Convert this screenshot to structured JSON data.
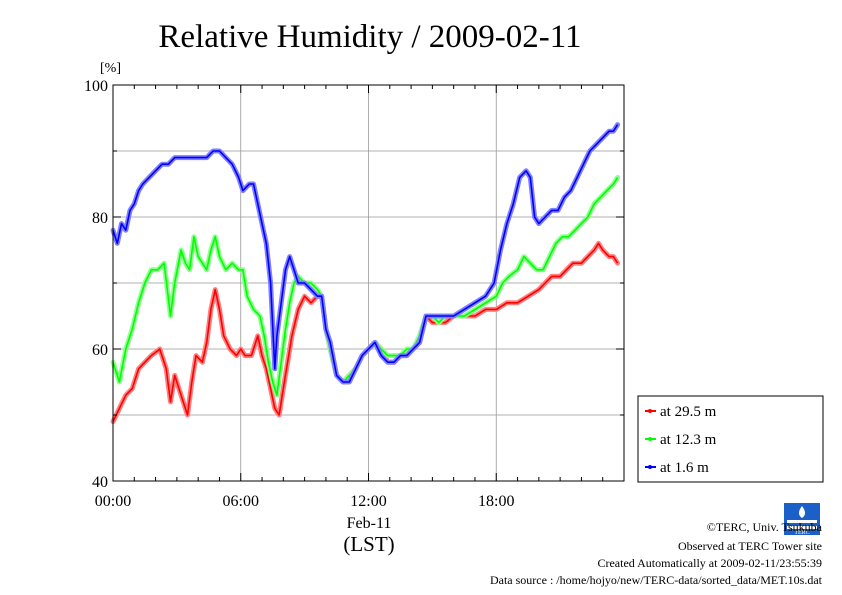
{
  "chart_data": {
    "type": "line",
    "title": "Relative Humidity / 2009-02-11",
    "ylabel": "[%]",
    "ylim": [
      40,
      100
    ],
    "yticks": [
      40,
      60,
      80,
      100
    ],
    "xlim": [
      0,
      24
    ],
    "xticks": [
      {
        "x": 0,
        "label": "00:00"
      },
      {
        "x": 6,
        "label": "06:00"
      },
      {
        "x": 12,
        "label": "12:00"
      },
      {
        "x": 18,
        "label": "18:00"
      }
    ],
    "date_label": "Feb-11",
    "xlabel": "(LST)",
    "grid": true,
    "legend_position": "right",
    "series": [
      {
        "name": "at 29.5 m",
        "color": "#ff0000",
        "points": [
          [
            0,
            49
          ],
          [
            0.3,
            51
          ],
          [
            0.6,
            53
          ],
          [
            0.9,
            54
          ],
          [
            1.2,
            57
          ],
          [
            1.5,
            58
          ],
          [
            1.8,
            59
          ],
          [
            2.2,
            60
          ],
          [
            2.5,
            57
          ],
          [
            2.7,
            52
          ],
          [
            2.9,
            56
          ],
          [
            3.2,
            53
          ],
          [
            3.5,
            50
          ],
          [
            3.7,
            55
          ],
          [
            3.9,
            59
          ],
          [
            4.2,
            58
          ],
          [
            4.4,
            61
          ],
          [
            4.6,
            66
          ],
          [
            4.8,
            69
          ],
          [
            5.0,
            66
          ],
          [
            5.2,
            62
          ],
          [
            5.5,
            60
          ],
          [
            5.8,
            59
          ],
          [
            6.0,
            60
          ],
          [
            6.2,
            59
          ],
          [
            6.5,
            59
          ],
          [
            6.8,
            62
          ],
          [
            7.0,
            59
          ],
          [
            7.2,
            57
          ],
          [
            7.4,
            54
          ],
          [
            7.6,
            51
          ],
          [
            7.8,
            50
          ],
          [
            8.0,
            54
          ],
          [
            8.2,
            58
          ],
          [
            8.4,
            62
          ],
          [
            8.7,
            66
          ],
          [
            9.0,
            68
          ],
          [
            9.3,
            67
          ],
          [
            9.6,
            68
          ],
          [
            9.8,
            68
          ],
          [
            10.0,
            63
          ],
          [
            10.2,
            60
          ],
          [
            10.5,
            56
          ],
          [
            10.8,
            55
          ],
          [
            11.1,
            56
          ],
          [
            11.4,
            57
          ],
          [
            11.7,
            59
          ],
          [
            12.0,
            60
          ],
          [
            12.3,
            61
          ],
          [
            12.6,
            60
          ],
          [
            12.9,
            58
          ],
          [
            13.2,
            58
          ],
          [
            13.5,
            59
          ],
          [
            13.8,
            59
          ],
          [
            14.1,
            60
          ],
          [
            14.4,
            61
          ],
          [
            14.7,
            65
          ],
          [
            15.0,
            64
          ],
          [
            15.3,
            64
          ],
          [
            15.6,
            64
          ],
          [
            16.0,
            65
          ],
          [
            16.5,
            65
          ],
          [
            17.0,
            65
          ],
          [
            17.5,
            66
          ],
          [
            18.0,
            66
          ],
          [
            18.5,
            67
          ],
          [
            19.0,
            67
          ],
          [
            19.5,
            68
          ],
          [
            20.0,
            69
          ],
          [
            20.3,
            70
          ],
          [
            20.6,
            71
          ],
          [
            21.0,
            71
          ],
          [
            21.3,
            72
          ],
          [
            21.6,
            73
          ],
          [
            22.0,
            73
          ],
          [
            22.3,
            74
          ],
          [
            22.6,
            75
          ],
          [
            22.8,
            76
          ],
          [
            23.0,
            75
          ],
          [
            23.3,
            74
          ],
          [
            23.5,
            74
          ],
          [
            23.7,
            73
          ]
        ]
      },
      {
        "name": "at 12.3 m",
        "color": "#00ff00",
        "points": [
          [
            0,
            58
          ],
          [
            0.3,
            55
          ],
          [
            0.6,
            60
          ],
          [
            0.9,
            63
          ],
          [
            1.2,
            67
          ],
          [
            1.5,
            70
          ],
          [
            1.8,
            72
          ],
          [
            2.1,
            72
          ],
          [
            2.4,
            73
          ],
          [
            2.7,
            65
          ],
          [
            2.9,
            70
          ],
          [
            3.2,
            75
          ],
          [
            3.4,
            73
          ],
          [
            3.6,
            72
          ],
          [
            3.8,
            77
          ],
          [
            4.0,
            74
          ],
          [
            4.2,
            73
          ],
          [
            4.4,
            72
          ],
          [
            4.6,
            75
          ],
          [
            4.8,
            77
          ],
          [
            5.0,
            74
          ],
          [
            5.3,
            72
          ],
          [
            5.6,
            73
          ],
          [
            5.9,
            72
          ],
          [
            6.1,
            72
          ],
          [
            6.3,
            68
          ],
          [
            6.6,
            66
          ],
          [
            6.9,
            65
          ],
          [
            7.1,
            62
          ],
          [
            7.3,
            58
          ],
          [
            7.5,
            55
          ],
          [
            7.7,
            53
          ],
          [
            7.9,
            58
          ],
          [
            8.1,
            63
          ],
          [
            8.3,
            67
          ],
          [
            8.5,
            70
          ],
          [
            8.7,
            71
          ],
          [
            9.0,
            70
          ],
          [
            9.3,
            70
          ],
          [
            9.6,
            69
          ],
          [
            9.8,
            68
          ],
          [
            10.0,
            63
          ],
          [
            10.2,
            60
          ],
          [
            10.5,
            56
          ],
          [
            10.8,
            55
          ],
          [
            11.1,
            56
          ],
          [
            11.4,
            57
          ],
          [
            11.7,
            59
          ],
          [
            12.0,
            60
          ],
          [
            12.3,
            61
          ],
          [
            12.6,
            60
          ],
          [
            12.9,
            59
          ],
          [
            13.2,
            59
          ],
          [
            13.5,
            59
          ],
          [
            13.8,
            60
          ],
          [
            14.1,
            60
          ],
          [
            14.4,
            62
          ],
          [
            14.7,
            65
          ],
          [
            15.0,
            65
          ],
          [
            15.3,
            64
          ],
          [
            15.6,
            65
          ],
          [
            16.0,
            65
          ],
          [
            16.5,
            65
          ],
          [
            17.0,
            66
          ],
          [
            17.5,
            67
          ],
          [
            18.0,
            68
          ],
          [
            18.3,
            70
          ],
          [
            18.6,
            71
          ],
          [
            19.0,
            72
          ],
          [
            19.3,
            74
          ],
          [
            19.6,
            73
          ],
          [
            19.9,
            72
          ],
          [
            20.2,
            72
          ],
          [
            20.5,
            74
          ],
          [
            20.8,
            76
          ],
          [
            21.1,
            77
          ],
          [
            21.4,
            77
          ],
          [
            21.7,
            78
          ],
          [
            22.0,
            79
          ],
          [
            22.3,
            80
          ],
          [
            22.6,
            82
          ],
          [
            22.9,
            83
          ],
          [
            23.2,
            84
          ],
          [
            23.5,
            85
          ],
          [
            23.7,
            86
          ]
        ]
      },
      {
        "name": "at 1.6 m",
        "color": "#0000ff",
        "points": [
          [
            0,
            78
          ],
          [
            0.2,
            76
          ],
          [
            0.4,
            79
          ],
          [
            0.6,
            78
          ],
          [
            0.8,
            81
          ],
          [
            1.0,
            82
          ],
          [
            1.2,
            84
          ],
          [
            1.4,
            85
          ],
          [
            1.7,
            86
          ],
          [
            2.0,
            87
          ],
          [
            2.3,
            88
          ],
          [
            2.6,
            88
          ],
          [
            2.9,
            89
          ],
          [
            3.2,
            89
          ],
          [
            3.5,
            89
          ],
          [
            3.8,
            89
          ],
          [
            4.1,
            89
          ],
          [
            4.4,
            89
          ],
          [
            4.7,
            90
          ],
          [
            5.0,
            90
          ],
          [
            5.3,
            89
          ],
          [
            5.6,
            88
          ],
          [
            5.9,
            86
          ],
          [
            6.1,
            84
          ],
          [
            6.4,
            85
          ],
          [
            6.6,
            85
          ],
          [
            6.8,
            82
          ],
          [
            7.0,
            79
          ],
          [
            7.2,
            76
          ],
          [
            7.4,
            70
          ],
          [
            7.6,
            57
          ],
          [
            7.7,
            62
          ],
          [
            7.9,
            67
          ],
          [
            8.1,
            72
          ],
          [
            8.3,
            74
          ],
          [
            8.5,
            72
          ],
          [
            8.7,
            70
          ],
          [
            9.0,
            70
          ],
          [
            9.3,
            69
          ],
          [
            9.6,
            68
          ],
          [
            9.8,
            68
          ],
          [
            10.0,
            63
          ],
          [
            10.2,
            61
          ],
          [
            10.5,
            56
          ],
          [
            10.8,
            55
          ],
          [
            11.1,
            55
          ],
          [
            11.4,
            57
          ],
          [
            11.7,
            59
          ],
          [
            12.0,
            60
          ],
          [
            12.3,
            61
          ],
          [
            12.6,
            59
          ],
          [
            12.9,
            58
          ],
          [
            13.2,
            58
          ],
          [
            13.5,
            59
          ],
          [
            13.8,
            59
          ],
          [
            14.1,
            60
          ],
          [
            14.4,
            61
          ],
          [
            14.7,
            65
          ],
          [
            15.0,
            65
          ],
          [
            15.3,
            65
          ],
          [
            15.6,
            65
          ],
          [
            16.0,
            65
          ],
          [
            16.5,
            66
          ],
          [
            17.0,
            67
          ],
          [
            17.5,
            68
          ],
          [
            17.9,
            70
          ],
          [
            18.2,
            75
          ],
          [
            18.5,
            79
          ],
          [
            18.8,
            82
          ],
          [
            19.1,
            86
          ],
          [
            19.4,
            87
          ],
          [
            19.6,
            86
          ],
          [
            19.8,
            80
          ],
          [
            20.0,
            79
          ],
          [
            20.3,
            80
          ],
          [
            20.6,
            81
          ],
          [
            20.9,
            81
          ],
          [
            21.2,
            83
          ],
          [
            21.5,
            84
          ],
          [
            21.8,
            86
          ],
          [
            22.1,
            88
          ],
          [
            22.4,
            90
          ],
          [
            22.7,
            91
          ],
          [
            23.0,
            92
          ],
          [
            23.3,
            93
          ],
          [
            23.5,
            93
          ],
          [
            23.7,
            94
          ]
        ]
      }
    ]
  },
  "footer": {
    "credit": "©TERC, Univ. Tsukuba",
    "site": "Observed at TERC Tower site",
    "created": "Created Automatically at 2009-02-11/23:55:39",
    "source": "Data source : /home/hojyo/new/TERC-data/sorted_data/MET.10s.dat",
    "logo_text": "TERC"
  }
}
